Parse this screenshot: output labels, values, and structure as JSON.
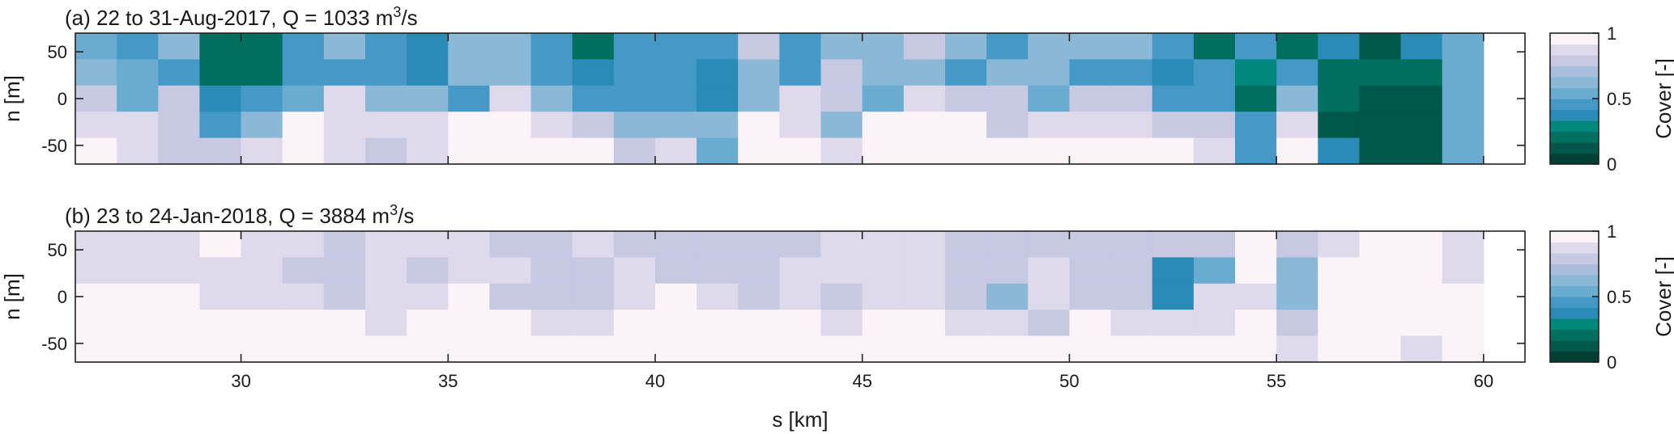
{
  "chart_data": [
    {
      "type": "heatmap",
      "panel": "a",
      "title_main": "(a) 22 to 31-Aug-2017, Q = 1033 m",
      "title_sup": "3",
      "title_tail": "/s",
      "xlabel": "",
      "ylabel": "n [m]",
      "xlim": [
        26,
        61
      ],
      "ylim": [
        -70,
        70
      ],
      "x_ticks": [
        30,
        35,
        40,
        45,
        50,
        55,
        60
      ],
      "x_tick_labels": [
        "",
        "",
        "",
        "",
        "",
        "",
        ""
      ],
      "y_ticks": [
        50,
        0,
        -50
      ],
      "y_tick_labels": [
        "50",
        "0",
        "-50"
      ],
      "cell_width_km": 1,
      "row_centers_n": [
        56,
        28,
        0,
        -28,
        -56
      ],
      "z": [
        [
          0.56,
          0.46,
          0.64,
          0.18,
          0.18,
          0.42,
          0.63,
          0.47,
          0.41,
          0.66,
          0.66,
          0.49,
          0.21,
          0.42,
          0.46,
          0.46,
          0.8,
          0.46,
          0.66,
          0.66,
          0.8,
          0.66,
          0.46,
          0.66,
          0.66,
          0.66,
          0.46,
          0.24,
          0.46,
          0.18,
          0.4,
          0.11,
          0.38,
          0.5
        ],
        [
          0.66,
          0.58,
          0.46,
          0.18,
          0.18,
          0.46,
          0.46,
          0.46,
          0.4,
          0.66,
          0.66,
          0.49,
          0.39,
          0.46,
          0.46,
          0.34,
          0.6,
          0.46,
          0.75,
          0.66,
          0.66,
          0.46,
          0.66,
          0.66,
          0.46,
          0.46,
          0.38,
          0.46,
          0.29,
          0.46,
          0.18,
          0.18,
          0.18,
          0.5
        ],
        [
          0.78,
          0.58,
          0.8,
          0.38,
          0.46,
          0.58,
          0.86,
          0.59,
          0.59,
          0.48,
          0.89,
          0.66,
          0.46,
          0.46,
          0.46,
          0.36,
          0.6,
          0.86,
          0.8,
          0.58,
          0.86,
          0.75,
          0.75,
          0.58,
          0.75,
          0.75,
          0.46,
          0.46,
          0.24,
          0.62,
          0.18,
          0.14,
          0.14,
          0.5
        ],
        [
          0.86,
          0.86,
          0.76,
          0.46,
          0.6,
          0.92,
          0.86,
          0.86,
          0.86,
          0.93,
          1.0,
          0.86,
          0.76,
          0.6,
          0.6,
          0.66,
          0.98,
          0.86,
          0.6,
          0.92,
          0.92,
          0.92,
          0.76,
          0.86,
          0.86,
          0.86,
          0.76,
          0.76,
          0.44,
          0.86,
          0.12,
          0.16,
          0.16,
          0.5
        ],
        [
          0.92,
          0.86,
          0.76,
          0.76,
          0.86,
          1.0,
          0.86,
          0.76,
          0.86,
          0.92,
          1.0,
          1.0,
          0.92,
          0.76,
          0.86,
          0.56,
          0.92,
          1.0,
          0.86,
          1.0,
          1.0,
          0.92,
          1.0,
          1.0,
          1.0,
          0.92,
          1.0,
          0.86,
          0.44,
          0.92,
          0.38,
          0.16,
          0.16,
          0.5
        ]
      ]
    },
    {
      "type": "heatmap",
      "panel": "b",
      "title_main": "(b) 23 to 24-Jan-2018, Q = 3884 m",
      "title_sup": "3",
      "title_tail": "/s",
      "xlabel": "s [km]",
      "ylabel": "n [m]",
      "xlim": [
        26,
        61
      ],
      "ylim": [
        -70,
        70
      ],
      "x_ticks": [
        30,
        35,
        40,
        45,
        50,
        55,
        60
      ],
      "x_tick_labels": [
        "30",
        "35",
        "40",
        "45",
        "50",
        "55",
        "60"
      ],
      "y_ticks": [
        50,
        0,
        -50
      ],
      "y_tick_labels": [
        "50",
        "0",
        "-50"
      ],
      "cell_width_km": 1,
      "row_centers_n": [
        56,
        28,
        0,
        -28,
        -56
      ],
      "z": [
        [
          0.84,
          0.84,
          0.84,
          0.92,
          0.84,
          0.84,
          0.75,
          0.84,
          0.84,
          0.84,
          0.75,
          0.75,
          0.84,
          0.75,
          0.75,
          0.75,
          0.75,
          0.75,
          0.84,
          0.84,
          0.84,
          0.75,
          0.75,
          0.75,
          0.75,
          0.75,
          0.75,
          0.75,
          0.95,
          0.75,
          0.88,
          0.95,
          1.0,
          0.84
        ],
        [
          0.84,
          0.84,
          0.84,
          0.84,
          0.84,
          0.75,
          0.75,
          0.84,
          0.75,
          0.84,
          0.84,
          0.75,
          0.75,
          0.84,
          0.75,
          0.75,
          0.75,
          0.84,
          0.84,
          0.84,
          0.84,
          0.75,
          0.75,
          0.84,
          0.75,
          0.75,
          0.36,
          0.56,
          0.95,
          0.62,
          0.92,
          0.92,
          1.0,
          0.84
        ],
        [
          0.92,
          0.92,
          0.92,
          0.84,
          0.84,
          0.84,
          0.75,
          0.84,
          0.84,
          0.95,
          0.75,
          0.75,
          0.75,
          0.84,
          0.92,
          0.84,
          0.75,
          0.84,
          0.75,
          0.84,
          0.84,
          0.75,
          0.62,
          0.84,
          0.75,
          0.75,
          0.36,
          0.84,
          0.84,
          0.62,
          0.92,
          0.92,
          0.92,
          0.92
        ],
        [
          1.0,
          1.0,
          1.0,
          0.92,
          0.92,
          0.92,
          0.92,
          0.84,
          0.98,
          1.0,
          0.92,
          0.84,
          0.84,
          1.0,
          1.0,
          1.0,
          0.92,
          0.92,
          0.84,
          0.92,
          1.0,
          0.84,
          0.84,
          0.75,
          0.92,
          0.84,
          0.84,
          0.84,
          1.0,
          0.75,
          0.92,
          0.92,
          0.92,
          0.92
        ],
        [
          1.0,
          1.0,
          0.92,
          0.92,
          0.92,
          1.0,
          1.0,
          1.0,
          0.92,
          1.0,
          0.92,
          0.92,
          0.92,
          1.0,
          1.0,
          1.0,
          1.0,
          1.0,
          1.0,
          1.0,
          1.0,
          1.0,
          1.0,
          0.92,
          0.92,
          1.0,
          1.0,
          0.92,
          1.0,
          0.84,
          0.92,
          0.92,
          0.84,
          0.92
        ]
      ]
    }
  ],
  "colorbar": {
    "label": "Cover [-]",
    "ticks": [
      1,
      0.5,
      0
    ],
    "tick_labels": [
      "1",
      "0.5",
      "0"
    ],
    "levels": 12,
    "colors": [
      "#003f33",
      "#00574a",
      "#006f60",
      "#00877b",
      "#2a8bb6",
      "#4599c7",
      "#6aabd0",
      "#8cb8d8",
      "#a9bedd",
      "#c7c9e3",
      "#dfd9ec",
      "#faf3f8"
    ]
  }
}
